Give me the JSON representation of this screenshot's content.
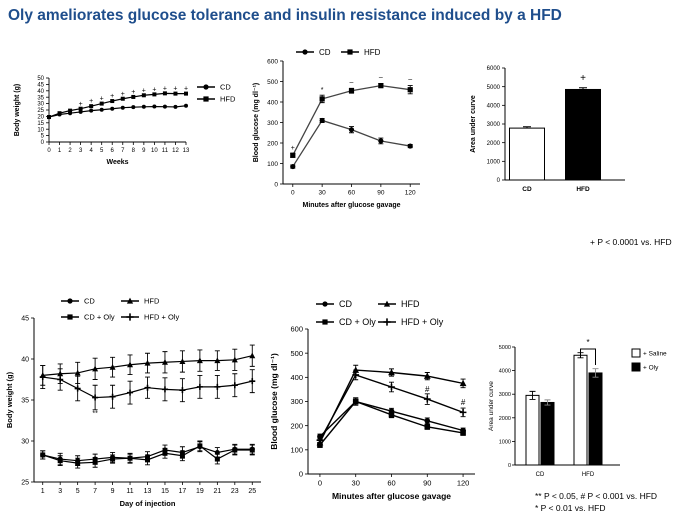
{
  "title": "Oly ameliorates glucose tolerance and insulin resistance induced by a HFD",
  "notes": {
    "top_right": "+ P < 0.0001 vs. HFD",
    "bottom_line1": "** P < 0.05, # P < 0.001  vs. HFD",
    "bottom_line2": "* P < 0.01 vs. HFD"
  },
  "chart_data": [
    {
      "type": "line",
      "xlabel": "Weeks",
      "ylabel": "Body weight (g)",
      "xlim": [
        0,
        13
      ],
      "ylim": [
        0,
        50
      ],
      "xticks": [
        0,
        1,
        2,
        3,
        4,
        5,
        6,
        7,
        8,
        9,
        10,
        11,
        12,
        13
      ],
      "yticks": [
        0,
        5,
        10,
        15,
        20,
        25,
        30,
        35,
        40,
        45,
        50
      ],
      "legend": "top-right",
      "x": [
        0,
        1,
        2,
        3,
        4,
        5,
        6,
        7,
        8,
        9,
        10,
        11,
        12,
        13
      ],
      "series": [
        {
          "name": "CD",
          "marker": "circle",
          "values": [
            19.5,
            21.5,
            22.5,
            23.5,
            24.5,
            25.2,
            26,
            26.8,
            27.2,
            27.5,
            27.7,
            27.6,
            27.4,
            28.3
          ]
        },
        {
          "name": "HFD",
          "marker": "square",
          "values": [
            19.5,
            22.5,
            24.5,
            26,
            28,
            30,
            32,
            33.8,
            35.2,
            36.5,
            37.2,
            38,
            37.8,
            37.8
          ]
        }
      ],
      "annotations": [
        {
          "text": "+",
          "x": 3,
          "y": 28.3
        },
        {
          "text": "+",
          "x": 4,
          "y": 30.3
        },
        {
          "text": "+",
          "x": 5,
          "y": 32.3
        },
        {
          "text": "+",
          "x": 6,
          "y": 34.3
        },
        {
          "text": "+",
          "x": 7,
          "y": 36.1
        },
        {
          "text": "+",
          "x": 8,
          "y": 37.5
        },
        {
          "text": "+",
          "x": 9,
          "y": 38.8
        },
        {
          "text": "+",
          "x": 10,
          "y": 39.5
        },
        {
          "text": "+",
          "x": 11,
          "y": 40.3
        },
        {
          "text": "+",
          "x": 12,
          "y": 40.1
        },
        {
          "text": "+",
          "x": 13,
          "y": 40.1
        }
      ]
    },
    {
      "type": "line",
      "xlabel": "Minutes after glucose gavage",
      "ylabel": "Blood glucose (mg dl⁻¹)",
      "xlim": [
        -10,
        130
      ],
      "ylim": [
        0,
        600
      ],
      "xticks": [
        0,
        30,
        60,
        90,
        120
      ],
      "yticks": [
        0,
        100,
        200,
        300,
        400,
        500,
        600
      ],
      "legend": "top",
      "x": [
        0,
        30,
        60,
        90,
        120
      ],
      "series": [
        {
          "name": "CD",
          "marker": "circle",
          "values": [
            85,
            310,
            265,
            210,
            185
          ],
          "errors": [
            8,
            10,
            15,
            14,
            8
          ]
        },
        {
          "name": "HFD",
          "marker": "square",
          "values": [
            140,
            415,
            455,
            480,
            460
          ],
          "errors": [
            10,
            18,
            12,
            10,
            20
          ]
        }
      ],
      "annotations": [
        {
          "text": "+",
          "x": 0,
          "y": 165
        },
        {
          "text": "*",
          "x": 30,
          "y": 450
        },
        {
          "text": "–",
          "x": 60,
          "y": 485
        },
        {
          "text": "–",
          "x": 90,
          "y": 510
        },
        {
          "text": "–",
          "x": 120,
          "y": 500
        }
      ]
    },
    {
      "type": "bar",
      "ylabel": "Area under curve",
      "ylim": [
        0,
        6000
      ],
      "yticks": [
        0,
        1000,
        2000,
        3000,
        4000,
        5000,
        6000
      ],
      "categories": [
        "CD",
        "HFD"
      ],
      "values": [
        2780,
        4850
      ],
      "errors": [
        70,
        90
      ],
      "fills": [
        "#ffffff",
        "#000000"
      ],
      "annotations": [
        {
          "text": "+",
          "category": "HFD"
        }
      ]
    },
    {
      "type": "line",
      "xlabel": "Day of injection",
      "ylabel": "Body weight (g)",
      "xlim": [
        0,
        26
      ],
      "ylim": [
        25,
        45
      ],
      "xticks": [
        1,
        3,
        5,
        7,
        9,
        11,
        13,
        15,
        17,
        19,
        21,
        23,
        25
      ],
      "yticks": [
        25,
        30,
        35,
        40,
        45
      ],
      "legend": "top-left",
      "x": [
        1,
        3,
        5,
        7,
        9,
        11,
        13,
        15,
        17,
        19,
        21,
        23,
        25
      ],
      "series": [
        {
          "name": "CD",
          "marker": "circle",
          "values": [
            28.3,
            27.8,
            27.6,
            27.8,
            28.0,
            27.9,
            28.1,
            28.9,
            28.6,
            29.3,
            28.6,
            29.0,
            29.0
          ],
          "errors": [
            0.5,
            0.7,
            0.6,
            0.6,
            0.6,
            0.5,
            0.6,
            0.6,
            0.7,
            0.6,
            0.6,
            0.6,
            0.6
          ]
        },
        {
          "name": "CD + Oly",
          "marker": "square",
          "values": [
            28.3,
            27.6,
            27.3,
            27.4,
            27.8,
            27.9,
            27.7,
            28.5,
            28.2,
            29.4,
            27.8,
            28.9,
            28.9
          ],
          "errors": [
            0.5,
            0.6,
            0.6,
            0.6,
            0.5,
            0.6,
            0.6,
            0.6,
            0.6,
            0.6,
            0.6,
            0.6,
            0.6
          ]
        },
        {
          "name": "HFD",
          "marker": "triangle",
          "values": [
            38.0,
            38.2,
            38.3,
            38.8,
            39.0,
            39.3,
            39.5,
            39.6,
            39.7,
            39.8,
            39.8,
            39.9,
            40.4
          ],
          "errors": [
            1.2,
            1.2,
            1.3,
            1.3,
            1.2,
            1.2,
            1.2,
            1.3,
            1.3,
            1.3,
            1.2,
            1.3,
            1.3
          ]
        },
        {
          "name": "HFD + Oly",
          "marker": "cross",
          "values": [
            37.8,
            37.5,
            36.4,
            35.3,
            35.4,
            35.9,
            36.5,
            36.3,
            36.2,
            36.6,
            36.6,
            36.8,
            37.3
          ],
          "errors": [
            1.4,
            1.3,
            1.5,
            1.5,
            1.4,
            1.4,
            1.3,
            1.4,
            1.4,
            1.4,
            1.4,
            1.4,
            1.4
          ]
        }
      ],
      "annotations": [
        {
          "text": "**",
          "x": 7,
          "y": 33.1
        }
      ]
    },
    {
      "type": "line",
      "xlabel": "Minutes after glucose gavage",
      "ylabel": "Blood glucose (mg dl⁻¹)",
      "xlim": [
        -10,
        130
      ],
      "ylim": [
        0,
        600
      ],
      "xticks": [
        0,
        30,
        60,
        90,
        120
      ],
      "yticks": [
        0,
        100,
        200,
        300,
        400,
        500,
        600
      ],
      "legend": "top",
      "x": [
        0,
        30,
        60,
        90,
        120
      ],
      "series": [
        {
          "name": "CD",
          "marker": "circle",
          "values": [
            155,
            300,
            260,
            220,
            180
          ],
          "errors": [
            10,
            15,
            12,
            12,
            10
          ]
        },
        {
          "name": "HFD",
          "marker": "triangle",
          "values": [
            130,
            430,
            420,
            405,
            375
          ],
          "errors": [
            10,
            20,
            15,
            15,
            18
          ]
        },
        {
          "name": "CD + Oly",
          "marker": "square",
          "values": [
            120,
            300,
            245,
            195,
            170
          ],
          "errors": [
            10,
            15,
            12,
            10,
            10
          ]
        },
        {
          "name": "HFD + Oly",
          "marker": "cross",
          "values": [
            140,
            410,
            360,
            310,
            255
          ],
          "errors": [
            10,
            20,
            20,
            22,
            18
          ]
        }
      ],
      "annotations": [
        {
          "text": "#",
          "x": 90,
          "y": 340
        },
        {
          "text": "#",
          "x": 120,
          "y": 285
        }
      ]
    },
    {
      "type": "bar",
      "ylabel": "Area under curve",
      "ylim": [
        0,
        5000
      ],
      "yticks": [
        0,
        1000,
        2000,
        3000,
        4000,
        5000
      ],
      "categories": [
        "CD",
        "HFD"
      ],
      "series": [
        {
          "name": "+ Saline",
          "fill": "#ffffff",
          "values": [
            2950,
            4650
          ],
          "errors": [
            170,
            110
          ]
        },
        {
          "name": "+ Oly",
          "fill": "#000000",
          "values": [
            2650,
            3900
          ],
          "errors": [
            110,
            180
          ]
        }
      ],
      "legend": "right",
      "annotations": [
        {
          "text": "*",
          "category": "HFD",
          "type": "bracket"
        }
      ]
    }
  ]
}
